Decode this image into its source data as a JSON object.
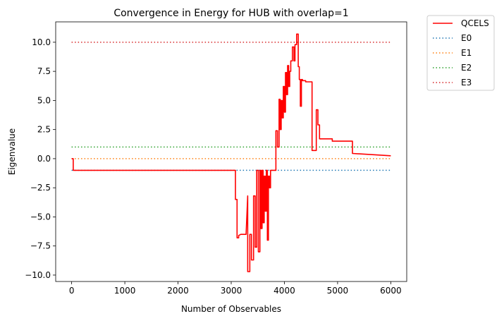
{
  "chart_data": {
    "type": "line",
    "title": "Convergence in Energy for HUB with overlap=1",
    "xlabel": "Number of Observables",
    "ylabel": "Eigenvalue",
    "xlim": [
      -300,
      6300
    ],
    "ylim": [
      -10.55,
      11.75
    ],
    "xticks": [
      0,
      1000,
      2000,
      3000,
      4000,
      5000,
      6000
    ],
    "xtick_labels": [
      "0",
      "1000",
      "2000",
      "3000",
      "4000",
      "5000",
      "6000"
    ],
    "yticks": [
      -10.0,
      -7.5,
      -5.0,
      -2.5,
      0.0,
      2.5,
      5.0,
      7.5,
      10.0
    ],
    "ytick_labels": [
      "−10.0",
      "−7.5",
      "−5.0",
      "−2.5",
      "0.0",
      "2.5",
      "5.0",
      "7.5",
      "10.0"
    ],
    "grid": false,
    "legend_position": "outside-right-top",
    "series": [
      {
        "name": "QCELS",
        "style": "solid",
        "color": "#ff0000",
        "x": [
          0,
          30,
          30,
          3080,
          3080,
          3110,
          3110,
          3140,
          3140,
          3180,
          3280,
          3310,
          3310,
          3350,
          3350,
          3380,
          3380,
          3420,
          3420,
          3450,
          3450,
          3480,
          3480,
          3510,
          3510,
          3540,
          3540,
          3560,
          3560,
          3580,
          3580,
          3600,
          3600,
          3620,
          3620,
          3640,
          3640,
          3660,
          3660,
          3680,
          3680,
          3700,
          3700,
          3720,
          3720,
          3740,
          3740,
          3760,
          3760,
          3800,
          3840,
          3840,
          3870,
          3870,
          3900,
          3900,
          3920,
          3920,
          3940,
          3940,
          3960,
          3960,
          3980,
          3980,
          4000,
          4000,
          4020,
          4020,
          4040,
          4040,
          4060,
          4060,
          4080,
          4080,
          4100,
          4100,
          4120,
          4120,
          4150,
          4150,
          4180,
          4180,
          4200,
          4200,
          4230,
          4230,
          4260,
          4260,
          4280,
          4280,
          4300,
          4300,
          4320,
          4320,
          4340,
          4340,
          4400,
          4400,
          4520,
          4520,
          4600,
          4600,
          4630,
          4630,
          4660,
          4660,
          4900,
          4900,
          5280,
          5280,
          6000
        ],
        "y": [
          0.0,
          0.0,
          -1.0,
          -1.0,
          -3.5,
          -3.5,
          -6.8,
          -6.8,
          -6.6,
          -6.5,
          -6.5,
          -3.2,
          -9.7,
          -9.7,
          -6.5,
          -6.5,
          -8.7,
          -8.7,
          -3.2,
          -3.2,
          -7.6,
          -7.6,
          -1.0,
          -1.0,
          -8.0,
          -8.0,
          -1.0,
          -1.0,
          -6.0,
          -6.0,
          -1.0,
          -1.0,
          -5.5,
          -5.5,
          -1.5,
          -1.5,
          -4.5,
          -4.5,
          -1.0,
          -1.0,
          -7.0,
          -7.0,
          -1.5,
          -1.5,
          -2.5,
          -2.5,
          -1.0,
          -1.0,
          -1.0,
          -1.0,
          -1.0,
          2.4,
          2.4,
          1.0,
          1.0,
          5.1,
          5.1,
          2.5,
          2.5,
          5.0,
          5.0,
          3.5,
          3.5,
          6.2,
          6.2,
          4.0,
          4.0,
          7.4,
          7.4,
          5.5,
          5.5,
          8.0,
          8.0,
          6.2,
          6.2,
          7.5,
          7.5,
          8.4,
          8.4,
          9.6,
          9.6,
          8.4,
          8.4,
          9.8,
          9.8,
          10.7,
          10.7,
          7.9,
          7.9,
          6.8,
          6.8,
          4.5,
          4.5,
          6.8,
          6.8,
          6.7,
          6.7,
          6.6,
          6.6,
          0.7,
          0.7,
          4.2,
          4.2,
          2.9,
          2.9,
          1.7,
          1.7,
          1.5,
          1.5,
          0.45,
          0.25
        ]
      },
      {
        "name": "E0",
        "style": "dotted",
        "color": "#1f77b4",
        "x": [
          0,
          6000
        ],
        "y": [
          -1.0,
          -1.0
        ]
      },
      {
        "name": "E1",
        "style": "dotted",
        "color": "#ff7f0e",
        "x": [
          0,
          6000
        ],
        "y": [
          0.0,
          0.0
        ]
      },
      {
        "name": "E2",
        "style": "dotted",
        "color": "#2ca02c",
        "x": [
          0,
          6000
        ],
        "y": [
          1.0,
          1.0
        ]
      },
      {
        "name": "E3",
        "style": "dotted",
        "color": "#d62728",
        "x": [
          0,
          6000
        ],
        "y": [
          10.0,
          10.0
        ]
      }
    ]
  }
}
